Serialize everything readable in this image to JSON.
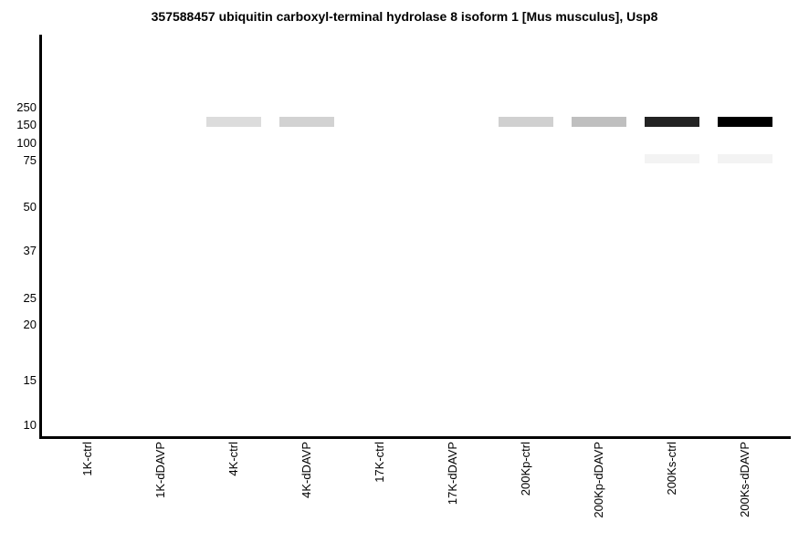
{
  "chart_data": {
    "type": "heatmap",
    "subtype": "simulated-western-blot",
    "title": "357588457 ubiquitin carboxyl-terminal hydrolase 8 isoform 1 [Mus musculus], Usp8",
    "xlabel": "",
    "ylabel": "",
    "x_axis": {
      "lanes": [
        "1K-ctrl",
        "1K-dDAVP",
        "4K-ctrl",
        "4K-dDAVP",
        "17K-ctrl",
        "17K-dDAVP",
        "200Kp-ctrl",
        "200Kp-dDAVP",
        "200Ks-ctrl",
        "200Ks-dDAVP"
      ],
      "tick_rotation_degrees": 90
    },
    "y_axis": {
      "mw_markers_kda": [
        250,
        150,
        100,
        75,
        50,
        37,
        25,
        20,
        15,
        10
      ],
      "scale": "molecular-weight-ladder"
    },
    "bands": [
      {
        "lane": "4K-ctrl",
        "mw": 150,
        "color": "#dcdcdc",
        "intensity": 0.14
      },
      {
        "lane": "4K-dDAVP",
        "mw": 150,
        "color": "#d2d2d2",
        "intensity": 0.18
      },
      {
        "lane": "200Kp-ctrl",
        "mw": 150,
        "color": "#d0d0d0",
        "intensity": 0.19
      },
      {
        "lane": "200Kp-dDAVP",
        "mw": 150,
        "color": "#bfbfbf",
        "intensity": 0.25
      },
      {
        "lane": "200Ks-ctrl",
        "mw": 150,
        "color": "#232323",
        "intensity": 0.86
      },
      {
        "lane": "200Ks-dDAVP",
        "mw": 150,
        "color": "#000000",
        "intensity": 1.0
      },
      {
        "lane": "200Ks-ctrl",
        "mw": 75,
        "color": "#f3f3f3",
        "intensity": 0.05
      },
      {
        "lane": "200Ks-dDAVP",
        "mw": 75,
        "color": "#f3f3f3",
        "intensity": 0.05
      }
    ],
    "layout_hints": {
      "grid": false,
      "legend": false,
      "spines": [
        "left",
        "bottom"
      ],
      "background": "#ffffff"
    }
  }
}
